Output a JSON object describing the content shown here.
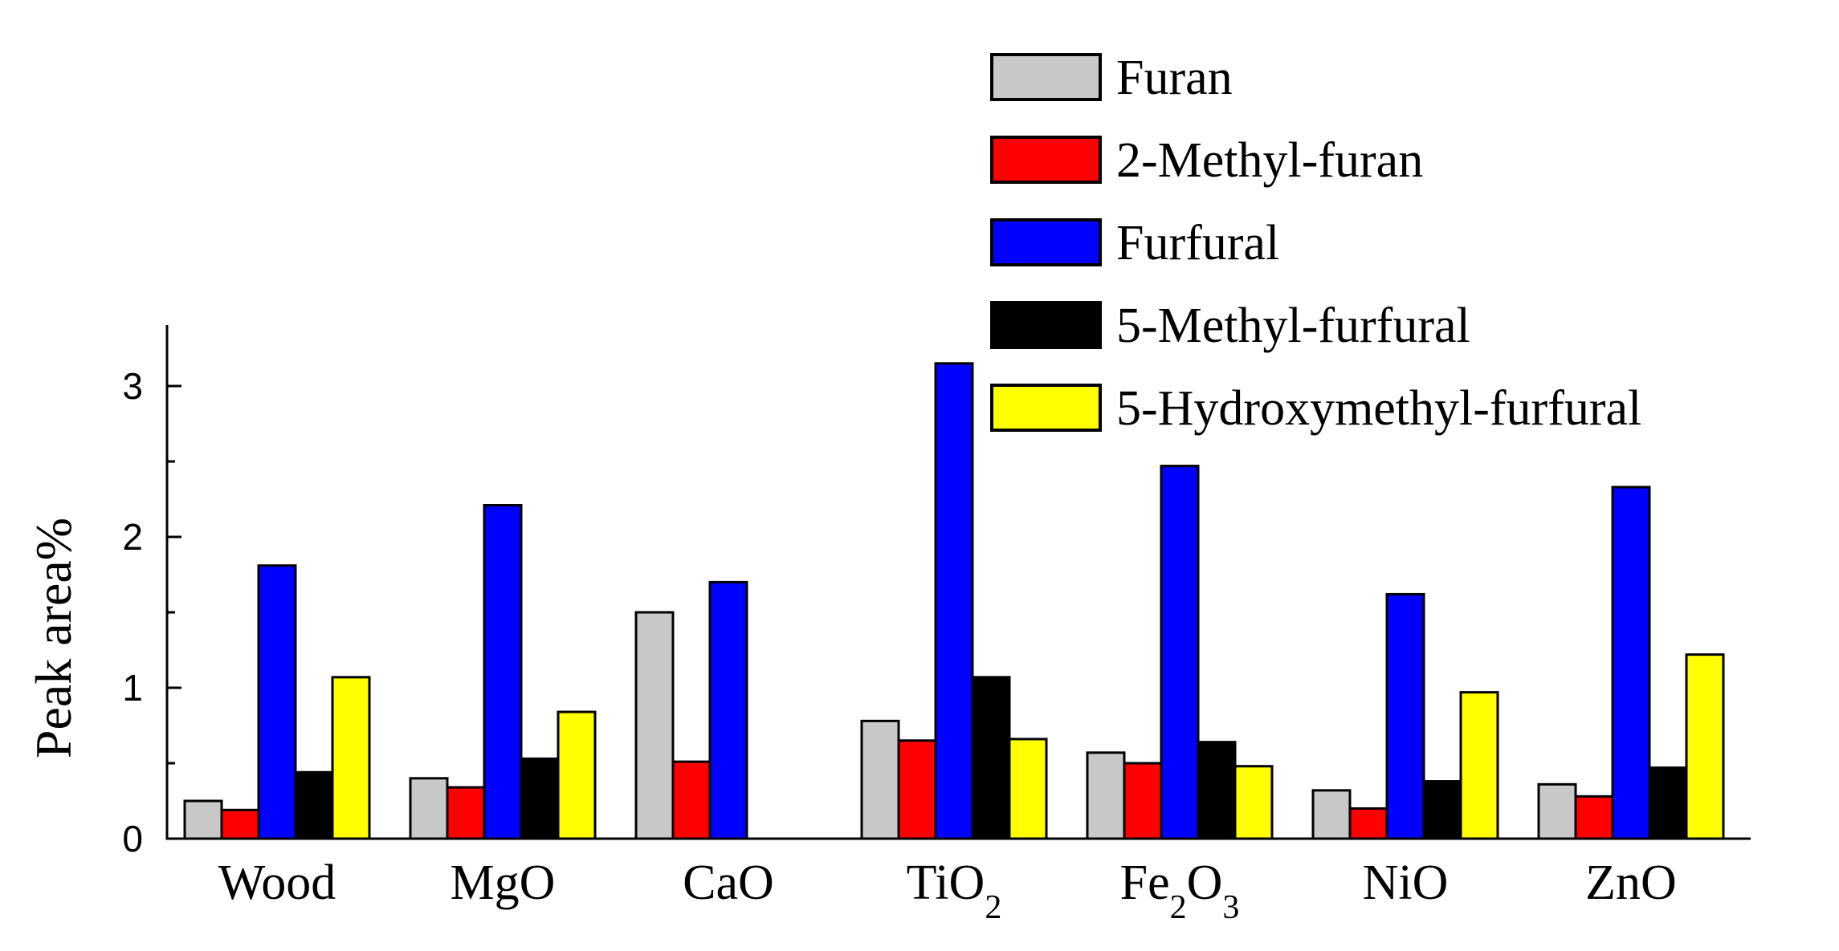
{
  "chart_data": {
    "type": "bar",
    "categories": [
      {
        "base": "Wood",
        "parts": [
          {
            "t": "Wood",
            "sub": false
          }
        ]
      },
      {
        "base": "MgO",
        "parts": [
          {
            "t": "MgO",
            "sub": false
          }
        ]
      },
      {
        "base": "CaO",
        "parts": [
          {
            "t": "CaO",
            "sub": false
          }
        ]
      },
      {
        "base": "TiO2",
        "parts": [
          {
            "t": "TiO",
            "sub": false
          },
          {
            "t": "2",
            "sub": true
          }
        ]
      },
      {
        "base": "Fe2O3",
        "parts": [
          {
            "t": "Fe",
            "sub": false
          },
          {
            "t": "2",
            "sub": true
          },
          {
            "t": "O",
            "sub": false
          },
          {
            "t": "3",
            "sub": true
          }
        ]
      },
      {
        "base": "NiO",
        "parts": [
          {
            "t": "NiO",
            "sub": false
          }
        ]
      },
      {
        "base": "ZnO",
        "parts": [
          {
            "t": "ZnO",
            "sub": false
          }
        ]
      }
    ],
    "series": [
      {
        "name": "Furan",
        "color": "#c8c8c8",
        "values": [
          0.25,
          0.4,
          1.5,
          0.78,
          0.57,
          0.32,
          0.36
        ]
      },
      {
        "name": "2-Methyl-furan",
        "color": "#ff0000",
        "values": [
          0.19,
          0.34,
          0.51,
          0.65,
          0.5,
          0.2,
          0.28
        ]
      },
      {
        "name": "Furfural",
        "color": "#0000ff",
        "values": [
          1.81,
          2.21,
          1.7,
          3.15,
          2.47,
          1.62,
          2.33
        ]
      },
      {
        "name": "5-Methyl-furfural",
        "color": "#000000",
        "values": [
          0.44,
          0.53,
          0.0,
          1.07,
          0.64,
          0.38,
          0.47
        ]
      },
      {
        "name": "5-Hydroxymethyl-furfural",
        "color": "#ffff00",
        "values": [
          1.07,
          0.84,
          0.0,
          0.66,
          0.48,
          0.97,
          1.22
        ]
      }
    ],
    "title": "",
    "xlabel": "",
    "ylabel": "Peak area%",
    "ylim": [
      0,
      3.4
    ],
    "yticks": [
      0,
      1,
      2,
      3
    ],
    "grid": false,
    "legend_position": "top-right"
  }
}
